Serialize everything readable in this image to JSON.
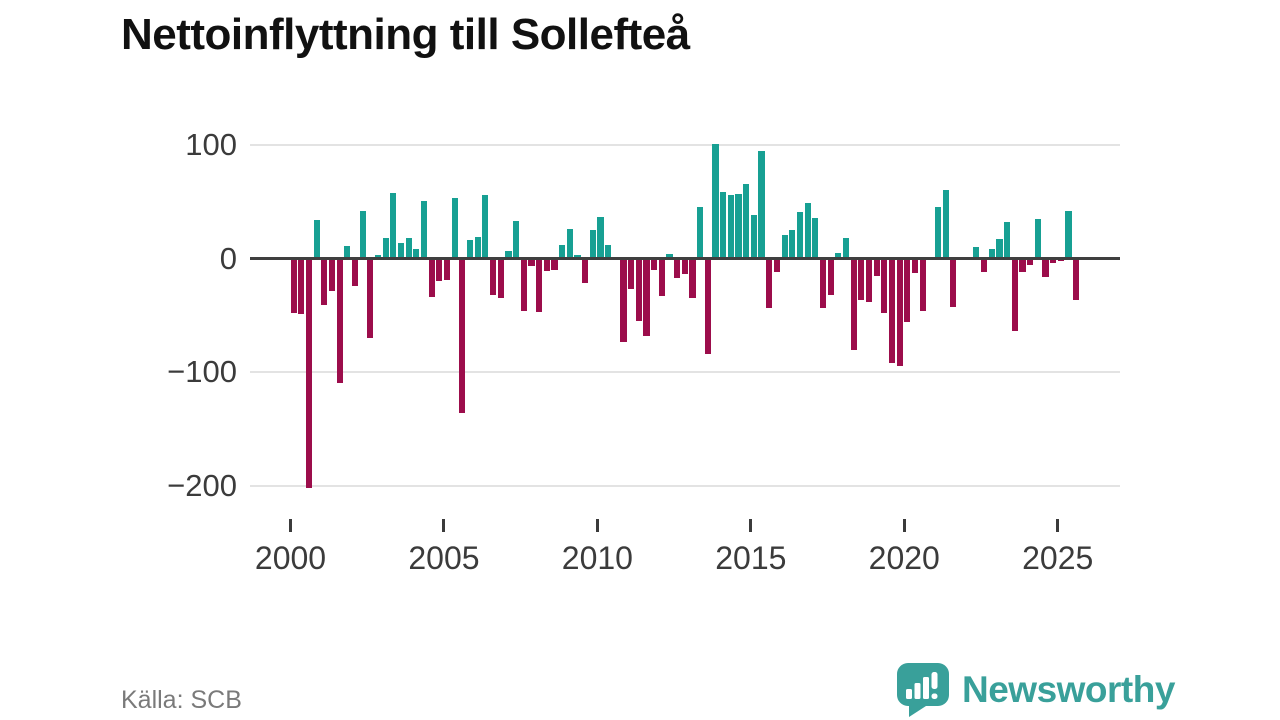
{
  "header": {
    "title": "Nettoinflyttning till Sollefteå"
  },
  "footer": {
    "source_label": "Källa: SCB",
    "brand": {
      "name": "Newsworthy",
      "logo_icon": "bar-chart-speech-bubble-icon"
    }
  },
  "colors": {
    "positive_bar": "#17a093",
    "negative_bar": "#9c0d4b",
    "zero_line": "#3f3f3f",
    "gridline": "#e3e3e3",
    "axis_text": "#3b3b3b",
    "title_text": "#111111",
    "source_text": "#7a7a7a",
    "brand_teal": "#39a09a",
    "background": "#ffffff"
  },
  "chart_data": {
    "type": "bar",
    "title": "Nettoinflyttning till Sollefteå",
    "x": [
      "2000-Q1",
      "2000-Q2",
      "2000-Q3",
      "2000-Q4",
      "2001-Q1",
      "2001-Q2",
      "2001-Q3",
      "2001-Q4",
      "2002-Q1",
      "2002-Q2",
      "2002-Q3",
      "2002-Q4",
      "2003-Q1",
      "2003-Q2",
      "2003-Q3",
      "2003-Q4",
      "2004-Q1",
      "2004-Q2",
      "2004-Q3",
      "2004-Q4",
      "2005-Q1",
      "2005-Q2",
      "2005-Q3",
      "2005-Q4",
      "2006-Q1",
      "2006-Q2",
      "2006-Q3",
      "2006-Q4",
      "2007-Q1",
      "2007-Q2",
      "2007-Q3",
      "2007-Q4",
      "2008-Q1",
      "2008-Q2",
      "2008-Q3",
      "2008-Q4",
      "2009-Q1",
      "2009-Q2",
      "2009-Q3",
      "2009-Q4",
      "2010-Q1",
      "2010-Q2",
      "2010-Q3",
      "2010-Q4",
      "2011-Q1",
      "2011-Q2",
      "2011-Q3",
      "2011-Q4",
      "2012-Q1",
      "2012-Q2",
      "2012-Q3",
      "2012-Q4",
      "2013-Q1",
      "2013-Q2",
      "2013-Q3",
      "2013-Q4",
      "2014-Q1",
      "2014-Q2",
      "2014-Q3",
      "2014-Q4",
      "2015-Q1",
      "2015-Q2",
      "2015-Q3",
      "2015-Q4",
      "2016-Q1",
      "2016-Q2",
      "2016-Q3",
      "2016-Q4",
      "2017-Q1",
      "2017-Q2",
      "2017-Q3",
      "2017-Q4",
      "2018-Q1",
      "2018-Q2",
      "2018-Q3",
      "2018-Q4",
      "2019-Q1",
      "2019-Q2",
      "2019-Q3",
      "2019-Q4",
      "2020-Q1",
      "2020-Q2",
      "2020-Q3",
      "2020-Q4",
      "2021-Q1",
      "2021-Q2",
      "2021-Q3",
      "2021-Q4",
      "2022-Q1",
      "2022-Q2",
      "2022-Q3",
      "2022-Q4",
      "2023-Q1",
      "2023-Q2",
      "2023-Q3",
      "2023-Q4",
      "2024-Q1",
      "2024-Q2",
      "2024-Q3",
      "2024-Q4",
      "2025-Q1",
      "2025-Q2",
      "2025-Q3"
    ],
    "values": [
      -48,
      -49,
      -202,
      34,
      -41,
      -29,
      -110,
      11,
      -24,
      42,
      -70,
      3,
      18,
      58,
      14,
      18,
      8,
      51,
      -34,
      -20,
      -19,
      53,
      -136,
      16,
      19,
      56,
      -32,
      -35,
      7,
      33,
      -46,
      -7,
      -47,
      -11,
      -10,
      12,
      26,
      3,
      -22,
      25,
      37,
      12,
      0,
      -74,
      -27,
      -55,
      -68,
      -10,
      -33,
      4,
      -17,
      -14,
      -35,
      45,
      -84,
      101,
      59,
      56,
      57,
      66,
      38,
      95,
      -44,
      -12,
      21,
      25,
      41,
      49,
      36,
      -44,
      -32,
      5,
      18,
      -81,
      -37,
      -38,
      -15,
      -48,
      -92,
      -95,
      -56,
      -13,
      -46,
      0,
      45,
      60,
      -43,
      0,
      0,
      10,
      -12,
      8,
      17,
      32,
      -64,
      -12,
      -6,
      35,
      -16,
      -4,
      -2,
      42,
      -37
    ],
    "y_ticks": [
      100,
      0,
      -100,
      -200
    ],
    "y_tick_labels": [
      "100",
      "0",
      "−100",
      "−200"
    ],
    "x_ticks": [
      2000,
      2005,
      2010,
      2015,
      2020,
      2025
    ],
    "x_tick_labels": [
      "2000",
      "2005",
      "2010",
      "2015",
      "2020",
      "2025"
    ],
    "ylim": [
      -215,
      110
    ],
    "grid": "horizontal",
    "legend": "none",
    "bar_colors": {
      "positive": "#17a093",
      "negative": "#9c0d4b"
    }
  }
}
